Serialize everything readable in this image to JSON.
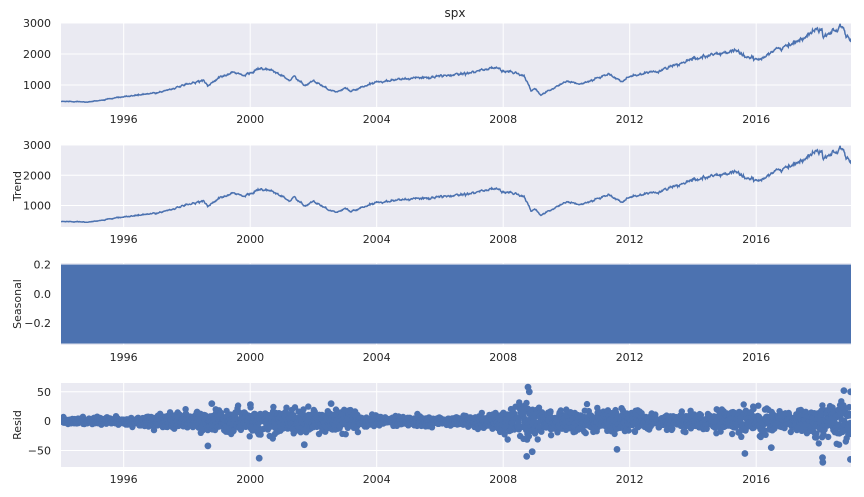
{
  "figure": {
    "title": "spx"
  },
  "colors": {
    "series": "#4c72b0",
    "axes_bg": "#eaeaf2",
    "grid": "#ffffff",
    "text": "#262626"
  },
  "x_axis": {
    "range": [
      "1994-01-07",
      "2018-12-31"
    ],
    "ticks": [
      {
        "date": "1996-01-01",
        "label": "1996"
      },
      {
        "date": "2000-01-01",
        "label": "2000"
      },
      {
        "date": "2004-01-01",
        "label": "2004"
      },
      {
        "date": "2008-01-01",
        "label": "2008"
      },
      {
        "date": "2012-01-01",
        "label": "2012"
      },
      {
        "date": "2016-01-01",
        "label": "2016"
      }
    ]
  },
  "chart_data": [
    {
      "type": "line",
      "panel": "observed",
      "title": "spx",
      "ylabel": "",
      "ylim": [
        290,
        3000
      ],
      "yticks": [
        {
          "value": 1000,
          "label": "1000"
        },
        {
          "value": 2000,
          "label": "2000"
        },
        {
          "value": 3000,
          "label": "3000"
        }
      ],
      "grid": true,
      "series": [
        {
          "x": [
            "1994-01-07",
            "1995-01-01",
            "1996-01-01",
            "1997-01-01",
            "1997-10-15",
            "1998-07-15",
            "1998-09-01",
            "1999-01-01",
            "1999-07-15",
            "1999-10-15",
            "2000-03-24",
            "2000-09-01",
            "2001-01-01",
            "2001-04-01",
            "2001-05-20",
            "2001-09-21",
            "2002-01-01",
            "2002-07-23",
            "2002-10-09",
            "2003-01-01",
            "2003-03-11",
            "2004-01-01",
            "2005-01-01",
            "2006-01-01",
            "2007-01-01",
            "2007-10-09",
            "2008-01-01",
            "2008-06-01",
            "2008-09-01",
            "2008-11-20",
            "2009-01-01",
            "2009-03-09",
            "2010-01-01",
            "2010-07-01",
            "2011-04-29",
            "2011-10-03",
            "2012-01-01",
            "2013-01-01",
            "2014-01-01",
            "2015-05-21",
            "2015-08-25",
            "2016-02-11",
            "2016-07-01",
            "2017-01-01",
            "2018-01-26",
            "2018-02-08",
            "2018-06-01",
            "2018-09-20",
            "2018-12-24",
            "2018-12-31"
          ],
          "y": [
            470,
            460,
            620,
            740,
            950,
            1170,
            960,
            1230,
            1410,
            1290,
            1520,
            1480,
            1300,
            1130,
            1290,
            960,
            1150,
            820,
            780,
            900,
            800,
            1110,
            1210,
            1270,
            1420,
            1565,
            1450,
            1390,
            1280,
            800,
            900,
            680,
            1120,
            1030,
            1360,
            1100,
            1270,
            1480,
            1830,
            2130,
            1890,
            1830,
            2100,
            2260,
            2870,
            2580,
            2750,
            2930,
            2350,
            2500
          ]
        }
      ]
    },
    {
      "type": "line",
      "panel": "trend",
      "title": "",
      "ylabel": "Trend",
      "ylim": [
        290,
        3000
      ],
      "yticks": [
        {
          "value": 1000,
          "label": "1000"
        },
        {
          "value": 2000,
          "label": "2000"
        },
        {
          "value": 3000,
          "label": "3000"
        }
      ],
      "grid": true,
      "series": [
        {
          "x": [
            "1994-01-07",
            "1995-01-01",
            "1996-01-01",
            "1997-01-01",
            "1997-10-15",
            "1998-07-15",
            "1998-09-01",
            "1999-01-01",
            "1999-07-15",
            "1999-10-15",
            "2000-03-24",
            "2000-09-01",
            "2001-01-01",
            "2001-04-01",
            "2001-05-20",
            "2001-09-21",
            "2002-01-01",
            "2002-07-23",
            "2002-10-09",
            "2003-01-01",
            "2003-03-11",
            "2004-01-01",
            "2005-01-01",
            "2006-01-01",
            "2007-01-01",
            "2007-10-09",
            "2008-01-01",
            "2008-06-01",
            "2008-09-01",
            "2008-11-20",
            "2009-01-01",
            "2009-03-09",
            "2010-01-01",
            "2010-07-01",
            "2011-04-29",
            "2011-10-03",
            "2012-01-01",
            "2013-01-01",
            "2014-01-01",
            "2015-05-21",
            "2015-08-25",
            "2016-02-11",
            "2016-07-01",
            "2017-01-01",
            "2018-01-26",
            "2018-02-08",
            "2018-06-01",
            "2018-09-20",
            "2018-12-24",
            "2018-12-31"
          ],
          "y": [
            470,
            460,
            620,
            740,
            950,
            1170,
            960,
            1230,
            1410,
            1290,
            1520,
            1480,
            1300,
            1130,
            1290,
            960,
            1150,
            820,
            780,
            900,
            800,
            1110,
            1210,
            1270,
            1420,
            1565,
            1450,
            1390,
            1280,
            800,
            900,
            680,
            1120,
            1030,
            1360,
            1100,
            1270,
            1480,
            1830,
            2130,
            1890,
            1830,
            2100,
            2260,
            2870,
            2580,
            2750,
            2930,
            2350,
            2500
          ]
        }
      ]
    },
    {
      "type": "area",
      "panel": "seasonal",
      "title": "",
      "ylabel": "Seasonal",
      "ylim": [
        -0.35,
        0.21
      ],
      "band": [
        -0.34,
        0.2
      ],
      "yticks": [
        {
          "value": 0.2,
          "label": "0.2"
        },
        {
          "value": 0.0,
          "label": "0.0"
        },
        {
          "value": -0.2,
          "label": "−0.2"
        }
      ],
      "grid": true
    },
    {
      "type": "scatter",
      "panel": "resid",
      "title": "",
      "ylabel": "Resid",
      "ylim": [
        -78,
        65
      ],
      "yticks": [
        {
          "value": 50,
          "label": "50"
        },
        {
          "value": 0,
          "label": "0"
        },
        {
          "value": -50,
          "label": "−50"
        }
      ],
      "grid": true,
      "volatility": [
        {
          "x": "1994-01-07",
          "sd": 2
        },
        {
          "x": "1996-01-01",
          "sd": 3
        },
        {
          "x": "1997-06-01",
          "sd": 6
        },
        {
          "x": "1998-09-01",
          "sd": 8
        },
        {
          "x": "2000-03-01",
          "sd": 11
        },
        {
          "x": "2001-09-01",
          "sd": 10
        },
        {
          "x": "2002-09-01",
          "sd": 9
        },
        {
          "x": "2004-01-01",
          "sd": 4
        },
        {
          "x": "2006-06-01",
          "sd": 3
        },
        {
          "x": "2007-10-01",
          "sd": 7
        },
        {
          "x": "2008-10-15",
          "sd": 16
        },
        {
          "x": "2009-06-01",
          "sd": 9
        },
        {
          "x": "2010-06-01",
          "sd": 9
        },
        {
          "x": "2011-09-01",
          "sd": 10
        },
        {
          "x": "2013-01-01",
          "sd": 6
        },
        {
          "x": "2014-10-01",
          "sd": 8
        },
        {
          "x": "2015-09-01",
          "sd": 11
        },
        {
          "x": "2016-06-01",
          "sd": 10
        },
        {
          "x": "2017-06-01",
          "sd": 7
        },
        {
          "x": "2018-02-08",
          "sd": 16
        },
        {
          "x": "2018-12-31",
          "sd": 18
        }
      ],
      "outliers": [
        {
          "x": "1998-08-31",
          "y": -42
        },
        {
          "x": "1998-10-15",
          "y": 30
        },
        {
          "x": "2000-04-14",
          "y": -63
        },
        {
          "x": "2000-01-04",
          "y": 28
        },
        {
          "x": "2001-09-17",
          "y": -40
        },
        {
          "x": "2002-07-24",
          "y": 30
        },
        {
          "x": "2008-09-29",
          "y": -60
        },
        {
          "x": "2008-10-13",
          "y": 58
        },
        {
          "x": "2008-10-28",
          "y": 50
        },
        {
          "x": "2008-12-01",
          "y": -52
        },
        {
          "x": "2011-08-08",
          "y": -48
        },
        {
          "x": "2015-08-24",
          "y": -55
        },
        {
          "x": "2016-06-24",
          "y": -45
        },
        {
          "x": "2018-02-05",
          "y": -62
        },
        {
          "x": "2018-02-08",
          "y": -70
        },
        {
          "x": "2018-10-10",
          "y": 52
        },
        {
          "x": "2018-12-24",
          "y": -65
        },
        {
          "x": "2018-12-26",
          "y": 50
        }
      ]
    }
  ]
}
